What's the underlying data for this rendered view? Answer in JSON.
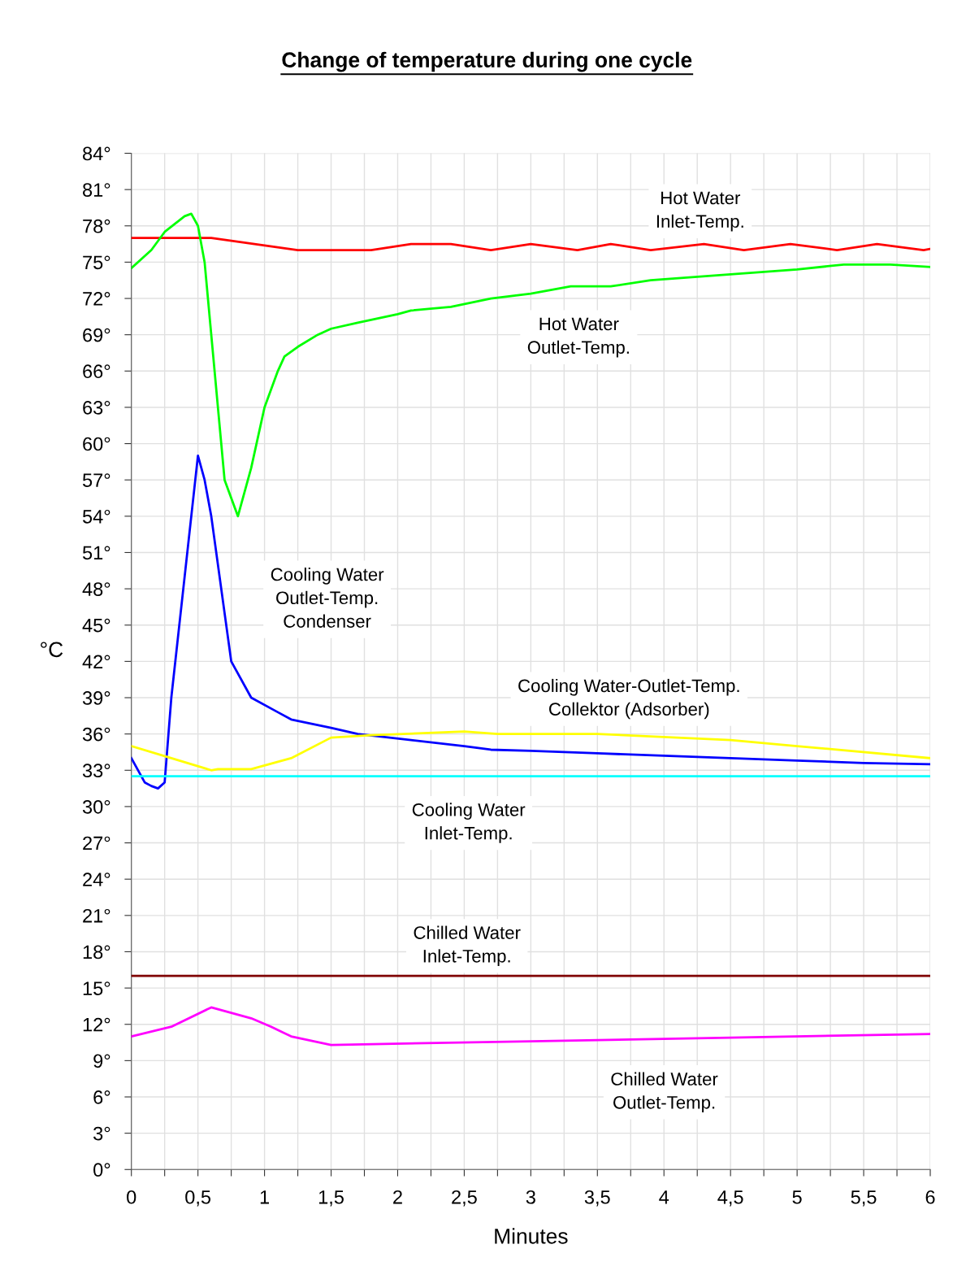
{
  "chart_data": {
    "type": "line",
    "title": "Change of temperature during one cycle",
    "xlabel": "Minutes",
    "ylabel": "°C",
    "xlim": [
      0,
      6
    ],
    "ylim": [
      0,
      84
    ],
    "xticks": [
      0,
      {
        "value": 0.25,
        "label": null
      },
      {
        "value": 0.5,
        "label": "0,5"
      },
      {
        "value": 0.75,
        "label": null
      },
      1,
      {
        "value": 1.25,
        "label": null
      },
      {
        "value": 1.5,
        "label": "1,5"
      },
      {
        "value": 1.75,
        "label": null
      },
      2,
      {
        "value": 2.25,
        "label": null
      },
      {
        "value": 2.5,
        "label": "2,5"
      },
      {
        "value": 2.75,
        "label": null
      },
      3,
      {
        "value": 3.25,
        "label": null
      },
      {
        "value": 3.5,
        "label": "3,5"
      },
      {
        "value": 3.75,
        "label": null
      },
      4,
      {
        "value": 4.25,
        "label": null
      },
      {
        "value": 4.5,
        "label": "4,5"
      },
      {
        "value": 4.75,
        "label": null
      },
      5,
      {
        "value": 5.25,
        "label": null
      },
      {
        "value": 5.5,
        "label": "5,5"
      },
      {
        "value": 5.75,
        "label": null
      },
      6
    ],
    "yticks": [
      {
        "value": 0,
        "label": "0°"
      },
      {
        "value": 3,
        "label": "3°"
      },
      {
        "value": 6,
        "label": "6°"
      },
      {
        "value": 9,
        "label": "9°"
      },
      {
        "value": 12,
        "label": "12°"
      },
      {
        "value": 15,
        "label": "15°"
      },
      {
        "value": 18,
        "label": "18°"
      },
      {
        "value": 21,
        "label": "21°"
      },
      {
        "value": 24,
        "label": "24°"
      },
      {
        "value": 27,
        "label": "27°"
      },
      {
        "value": 30,
        "label": "30°"
      },
      {
        "value": 33,
        "label": "33°"
      },
      {
        "value": 36,
        "label": "36°"
      },
      {
        "value": 39,
        "label": "39°"
      },
      {
        "value": 42,
        "label": "42°"
      },
      {
        "value": 45,
        "label": "45°"
      },
      {
        "value": 48,
        "label": "48°"
      },
      {
        "value": 51,
        "label": "51°"
      },
      {
        "value": 54,
        "label": "54°"
      },
      {
        "value": 57,
        "label": "57°"
      },
      {
        "value": 60,
        "label": "60°"
      },
      {
        "value": 63,
        "label": "63°"
      },
      {
        "value": 66,
        "label": "66°"
      },
      {
        "value": 69,
        "label": "69°"
      },
      {
        "value": 72,
        "label": "72°"
      },
      {
        "value": 75,
        "label": "75°"
      },
      {
        "value": 78,
        "label": "78°"
      },
      {
        "value": 81,
        "label": "81°"
      },
      {
        "value": 84,
        "label": "84°"
      }
    ],
    "grid": true,
    "legend": false,
    "marker": "none",
    "line_style": "solid",
    "series": [
      {
        "name": "Hot Water\nInlet-Temp.",
        "color": "#ff0000",
        "x": [
          0,
          0.6,
          1.25,
          1.8,
          2.1,
          2.4,
          2.7,
          3.0,
          3.35,
          3.6,
          3.9,
          4.3,
          4.6,
          4.95,
          5.3,
          5.6,
          5.95,
          6
        ],
        "values": [
          77,
          77,
          76,
          76,
          76.5,
          76.5,
          76,
          76.5,
          76,
          76.5,
          76,
          76.5,
          76,
          76.5,
          76,
          76.5,
          76,
          76.1
        ]
      },
      {
        "name": "Hot Water\nOutlet-Temp.",
        "color": "#00ff00",
        "x": [
          0,
          0.15,
          0.25,
          0.4,
          0.45,
          0.5,
          0.55,
          0.7,
          0.8,
          0.9,
          1.0,
          1.1,
          1.15,
          1.25,
          1.4,
          1.5,
          1.7,
          2.0,
          2.1,
          2.4,
          2.7,
          3.0,
          3.3,
          3.6,
          3.9,
          4.5,
          5.0,
          5.35,
          5.7,
          6
        ],
        "values": [
          74.5,
          76,
          77.5,
          78.8,
          79,
          78,
          75,
          57,
          54,
          58,
          63,
          66,
          67.2,
          68,
          69,
          69.5,
          70,
          70.7,
          71,
          71.3,
          72,
          72.4,
          73,
          73,
          73.5,
          74,
          74.4,
          74.8,
          74.8,
          74.6
        ]
      },
      {
        "name": "Cooling Water\nOutlet-Temp.\nCondenser",
        "color": "#0000ff",
        "x": [
          0,
          0.1,
          0.15,
          0.2,
          0.25,
          0.3,
          0.5,
          0.55,
          0.6,
          0.75,
          0.9,
          1.1,
          1.2,
          1.5,
          1.7,
          2.1,
          2.5,
          2.7,
          3.0,
          3.5,
          4.0,
          4.5,
          5.0,
          5.5,
          6
        ],
        "values": [
          34,
          32,
          31.7,
          31.5,
          32,
          39,
          59,
          57,
          54,
          42,
          39,
          37.8,
          37.2,
          36.5,
          36,
          35.5,
          35,
          34.7,
          34.6,
          34.4,
          34.2,
          34,
          33.8,
          33.6,
          33.5
        ]
      },
      {
        "name": "Cooling Water-Outlet-Temp.\nCollektor (Adsorber)",
        "color": "#ffff00",
        "x": [
          0,
          0.3,
          0.6,
          0.65,
          0.9,
          1.2,
          1.5,
          1.8,
          2.5,
          2.75,
          3.5,
          4.5,
          5.0,
          6
        ],
        "values": [
          35,
          34,
          33,
          33.1,
          33.1,
          34,
          35.7,
          35.9,
          36.2,
          36,
          36,
          35.5,
          35,
          34
        ]
      },
      {
        "name": "Cooling Water\nInlet-Temp.",
        "color": "#00ffff",
        "x": [
          0,
          6
        ],
        "values": [
          32.5,
          32.5
        ]
      },
      {
        "name": "Chilled Water\nInlet-Temp.",
        "color": "#800000",
        "x": [
          0,
          6
        ],
        "values": [
          16,
          16
        ]
      },
      {
        "name": "Chilled Water\nOutlet-Temp.",
        "color": "#ff00ff",
        "x": [
          0,
          0.3,
          0.6,
          0.9,
          1.05,
          1.2,
          1.5,
          3.0,
          4.5,
          6
        ],
        "values": [
          11,
          11.8,
          13.4,
          12.5,
          11.8,
          11,
          10.3,
          10.6,
          10.9,
          11.2
        ]
      }
    ]
  }
}
